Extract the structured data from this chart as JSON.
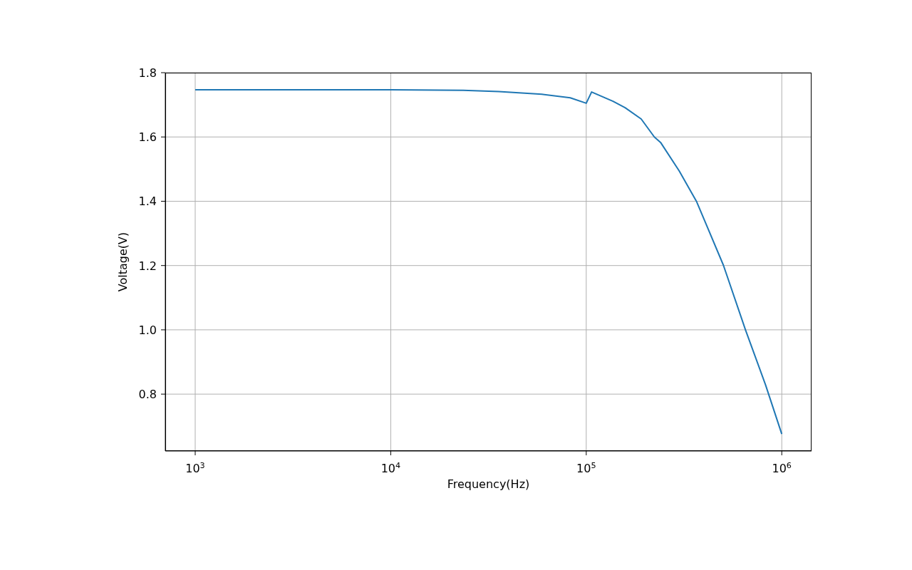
{
  "chart_data": {
    "type": "line",
    "xlabel": "Frequency(Hz)",
    "ylabel": "Voltage(V)",
    "log": "x",
    "grid": true,
    "marker": "none",
    "line_style": "solid",
    "xlim": [
      703,
      1420000
    ],
    "xticks": [
      {
        "value": 1000,
        "label": "10$^{3}$"
      },
      {
        "value": 10000,
        "label": "10$^{4}$"
      },
      {
        "value": 100000,
        "label": "10$^{5}$"
      },
      {
        "value": 1000000,
        "label": "10$^{6}$"
      }
    ],
    "ylim": [
      0.623,
      1.8
    ],
    "yticks": [
      0.8,
      {
        "value": 1.0,
        "label": "1.0"
      },
      1.2,
      1.4,
      1.6,
      1.8
    ],
    "x": [
      1000,
      10000,
      23500,
      35700,
      59200,
      82800,
      100000,
      106500,
      137000,
      158000,
      191000,
      223000,
      240000,
      299000,
      366000,
      418000,
      503000,
      653000,
      826000,
      1000000
    ],
    "series": [
      {
        "color": "#1f77b4",
        "values": [
          1.747,
          1.747,
          1.745,
          1.741,
          1.733,
          1.722,
          1.705,
          1.74,
          1.711,
          1.691,
          1.656,
          1.6,
          1.583,
          1.494,
          1.4,
          1.317,
          1.201,
          0.999,
          0.829,
          0.676
        ]
      }
    ]
  }
}
